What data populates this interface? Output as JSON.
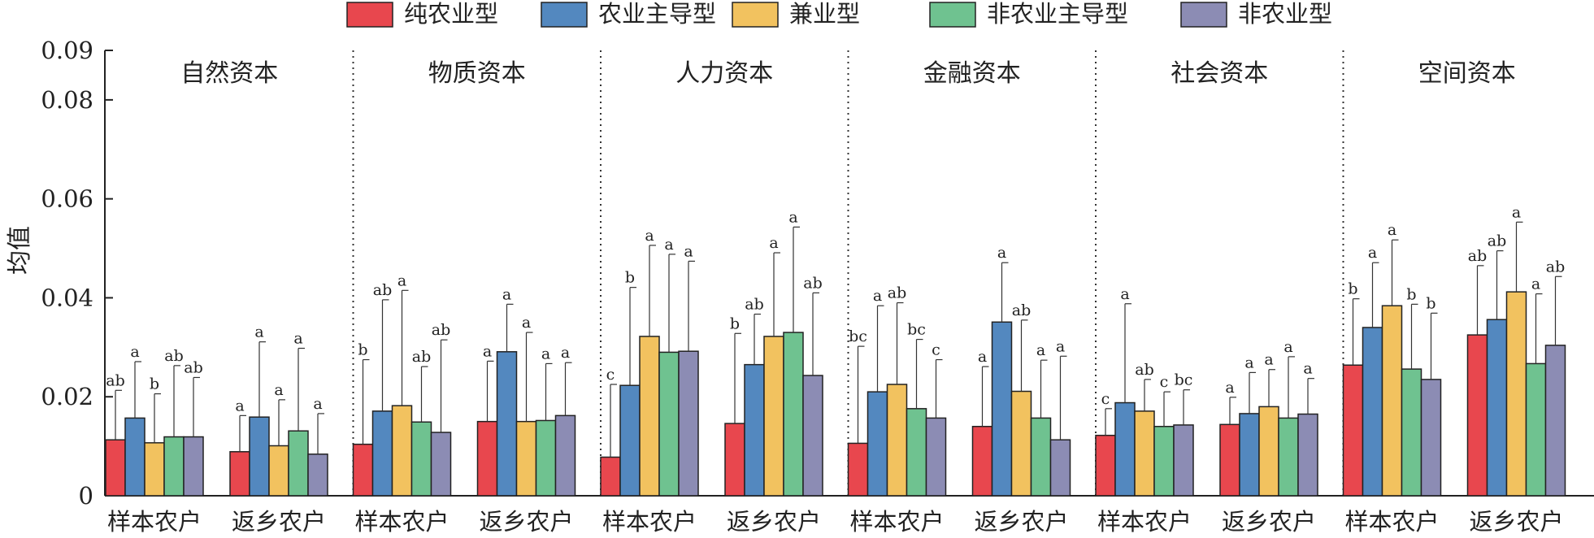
{
  "chart_data": {
    "type": "bar",
    "ylabel": "均值",
    "ylim": [
      0,
      0.09
    ],
    "yticks": [
      "0",
      "0.02",
      "0.04",
      "0.06",
      "0.08",
      "0.09"
    ],
    "legend_position": "top",
    "series": [
      {
        "name": "纯农业型",
        "color": "#e8474e"
      },
      {
        "name": "农业主导型",
        "color": "#5388bf"
      },
      {
        "name": "兼业型",
        "color": "#f2c25f"
      },
      {
        "name": "非农业主导型",
        "color": "#6fc290"
      },
      {
        "name": "非农业型",
        "color": "#8c8cb4"
      }
    ],
    "panels": [
      {
        "title": "自然资本",
        "groups": [
          {
            "label": "样本农户",
            "values": [
              0.0113,
              0.0157,
              0.0107,
              0.0119,
              0.0119
            ],
            "errors": [
              0.0213,
              0.0271,
              0.0206,
              0.0263,
              0.0239
            ],
            "letters": [
              "ab",
              "a",
              "b",
              "ab",
              "ab"
            ]
          },
          {
            "label": "返乡农户",
            "values": [
              0.0089,
              0.0159,
              0.0101,
              0.0131,
              0.0084
            ],
            "errors": [
              0.0162,
              0.0311,
              0.0194,
              0.0298,
              0.0166
            ],
            "letters": [
              "a",
              "a",
              "a",
              "a",
              "a"
            ]
          }
        ]
      },
      {
        "title": "物质资本",
        "groups": [
          {
            "label": "样本农户",
            "values": [
              0.0104,
              0.0171,
              0.0182,
              0.0149,
              0.0128
            ],
            "errors": [
              0.0275,
              0.0396,
              0.0415,
              0.0261,
              0.0315
            ],
            "letters": [
              "b",
              "ab",
              "a",
              "ab",
              "ab"
            ]
          },
          {
            "label": "返乡农户",
            "values": [
              0.015,
              0.0291,
              0.015,
              0.0152,
              0.0162
            ],
            "errors": [
              0.0272,
              0.0387,
              0.033,
              0.0267,
              0.0269
            ],
            "letters": [
              "a",
              "a",
              "a",
              "a",
              "a"
            ]
          }
        ]
      },
      {
        "title": "人力资本",
        "groups": [
          {
            "label": "样本农户",
            "values": [
              0.0078,
              0.0223,
              0.0322,
              0.029,
              0.0292
            ],
            "errors": [
              0.0225,
              0.0421,
              0.0506,
              0.0488,
              0.0474
            ],
            "letters": [
              "c",
              "b",
              "a",
              "a",
              "a"
            ]
          },
          {
            "label": "返乡农户",
            "values": [
              0.0146,
              0.0265,
              0.0322,
              0.033,
              0.0243
            ],
            "errors": [
              0.0328,
              0.0367,
              0.0491,
              0.0543,
              0.041
            ],
            "letters": [
              "b",
              "ab",
              "a",
              "a",
              "ab"
            ]
          }
        ]
      },
      {
        "title": "金融资本",
        "groups": [
          {
            "label": "样本农户",
            "values": [
              0.0106,
              0.021,
              0.0225,
              0.0176,
              0.0157
            ],
            "errors": [
              0.0302,
              0.0384,
              0.039,
              0.0316,
              0.0275
            ],
            "letters": [
              "bc",
              "a",
              "ab",
              "bc",
              "c"
            ]
          },
          {
            "label": "返乡农户",
            "values": [
              0.014,
              0.0351,
              0.0211,
              0.0157,
              0.0113
            ],
            "errors": [
              0.0261,
              0.0471,
              0.0355,
              0.0274,
              0.0282
            ],
            "letters": [
              "a",
              "a",
              "ab",
              "a",
              "a"
            ]
          }
        ]
      },
      {
        "title": "社会资本",
        "groups": [
          {
            "label": "样本农户",
            "values": [
              0.0122,
              0.0188,
              0.0171,
              0.014,
              0.0143
            ],
            "errors": [
              0.0176,
              0.0388,
              0.0235,
              0.021,
              0.0214
            ],
            "letters": [
              "c",
              "a",
              "ab",
              "c",
              "bc"
            ]
          },
          {
            "label": "返乡农户",
            "values": [
              0.0144,
              0.0166,
              0.018,
              0.0157,
              0.0165
            ],
            "errors": [
              0.0199,
              0.0249,
              0.0255,
              0.0281,
              0.0237
            ],
            "letters": [
              "a",
              "a",
              "a",
              "a",
              "a"
            ]
          }
        ]
      },
      {
        "title": "空间资本",
        "groups": [
          {
            "label": "样本农户",
            "values": [
              0.0264,
              0.034,
              0.0384,
              0.0256,
              0.0235
            ],
            "errors": [
              0.0398,
              0.0471,
              0.0517,
              0.0387,
              0.0369
            ],
            "letters": [
              "b",
              "a",
              "a",
              "b",
              "b"
            ]
          },
          {
            "label": "返乡农户",
            "values": [
              0.0325,
              0.0356,
              0.0412,
              0.0267,
              0.0304
            ],
            "errors": [
              0.0465,
              0.0495,
              0.0553,
              0.0408,
              0.0443
            ],
            "letters": [
              "ab",
              "ab",
              "a",
              "a",
              "ab"
            ]
          }
        ]
      }
    ]
  }
}
